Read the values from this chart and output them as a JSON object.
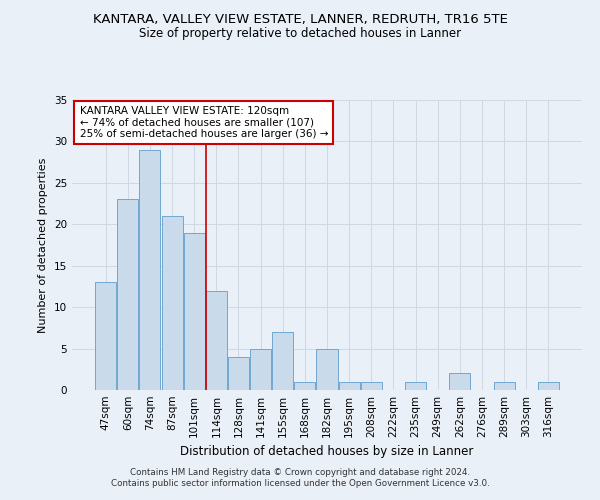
{
  "title": "KANTARA, VALLEY VIEW ESTATE, LANNER, REDRUTH, TR16 5TE",
  "subtitle": "Size of property relative to detached houses in Lanner",
  "xlabel": "Distribution of detached houses by size in Lanner",
  "ylabel": "Number of detached properties",
  "bar_labels": [
    "47sqm",
    "60sqm",
    "74sqm",
    "87sqm",
    "101sqm",
    "114sqm",
    "128sqm",
    "141sqm",
    "155sqm",
    "168sqm",
    "182sqm",
    "195sqm",
    "208sqm",
    "222sqm",
    "235sqm",
    "249sqm",
    "262sqm",
    "276sqm",
    "289sqm",
    "303sqm",
    "316sqm"
  ],
  "bar_values": [
    13,
    23,
    29,
    21,
    19,
    12,
    4,
    5,
    7,
    1,
    5,
    1,
    1,
    0,
    1,
    0,
    2,
    0,
    1,
    0,
    1
  ],
  "bar_color": "#c9daea",
  "bar_edge_color": "#6fa8d0",
  "marker_bar_index": 5,
  "marker_line_color": "#cc0000",
  "annotation_text": "KANTARA VALLEY VIEW ESTATE: 120sqm\n← 74% of detached houses are smaller (107)\n25% of semi-detached houses are larger (36) →",
  "annotation_box_color": "white",
  "annotation_box_edge_color": "#cc0000",
  "ylim": [
    0,
    35
  ],
  "yticks": [
    0,
    5,
    10,
    15,
    20,
    25,
    30,
    35
  ],
  "grid_color": "#d0d8e4",
  "background_color": "#eaf0f8",
  "footer": "Contains HM Land Registry data © Crown copyright and database right 2024.\nContains public sector information licensed under the Open Government Licence v3.0.",
  "title_fontsize": 9.5,
  "subtitle_fontsize": 8.5,
  "xlabel_fontsize": 8.5,
  "ylabel_fontsize": 8,
  "tick_fontsize": 7.5,
  "annotation_fontsize": 7.5
}
